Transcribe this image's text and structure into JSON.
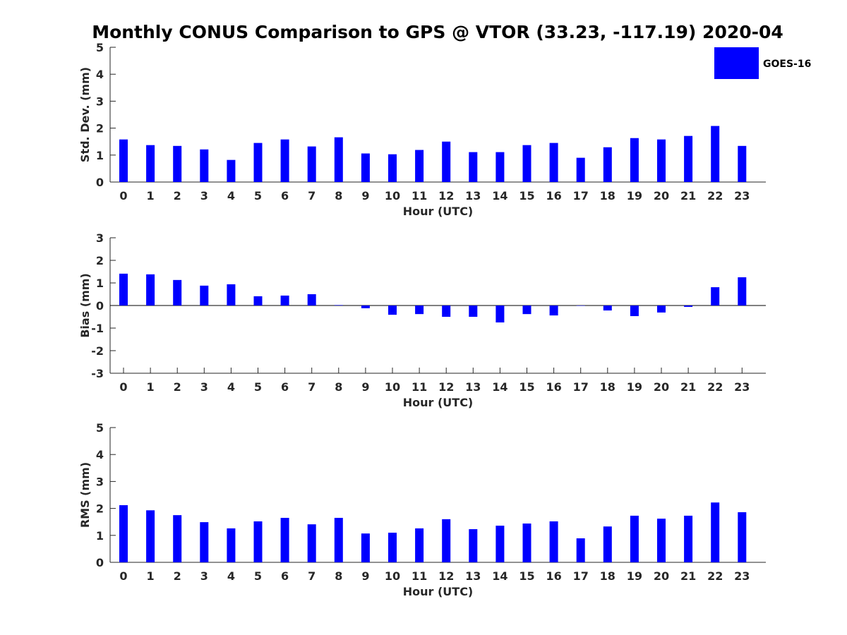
{
  "title": "Monthly CONUS Comparison to GPS @ VTOR (33.23, -117.19) 2020-04",
  "legend": {
    "label": "GOES-16",
    "placement": "top-right",
    "color": "#0000ff"
  },
  "chart_data": [
    {
      "type": "bar",
      "name": "std_dev",
      "xlabel": "Hour (UTC)",
      "ylabel": "Std. Dev. (mm)",
      "categories": [
        "0",
        "1",
        "2",
        "3",
        "4",
        "5",
        "6",
        "7",
        "8",
        "9",
        "10",
        "11",
        "12",
        "13",
        "14",
        "15",
        "16",
        "17",
        "18",
        "19",
        "20",
        "21",
        "22",
        "23"
      ],
      "yticks": [
        "0",
        "1",
        "2",
        "3",
        "4",
        "5"
      ],
      "ylim": [
        0,
        5
      ],
      "series": [
        {
          "name": "GOES-16",
          "color": "#0000ff",
          "values": [
            1.58,
            1.37,
            1.34,
            1.21,
            0.82,
            1.45,
            1.58,
            1.32,
            1.66,
            1.06,
            1.03,
            1.19,
            1.5,
            1.11,
            1.11,
            1.37,
            1.45,
            0.9,
            1.29,
            1.63,
            1.58,
            1.71,
            2.08,
            1.34
          ]
        }
      ],
      "zero_line": false,
      "grid": false
    },
    {
      "type": "bar",
      "name": "bias",
      "xlabel": "Hour (UTC)",
      "ylabel": "Bias (mm)",
      "categories": [
        "0",
        "1",
        "2",
        "3",
        "4",
        "5",
        "6",
        "7",
        "8",
        "9",
        "10",
        "11",
        "12",
        "13",
        "14",
        "15",
        "16",
        "17",
        "18",
        "19",
        "20",
        "21",
        "22",
        "23"
      ],
      "yticks": [
        "-3",
        "-2",
        "-1",
        "0",
        "1",
        "2",
        "3"
      ],
      "ylim": [
        -3,
        3
      ],
      "series": [
        {
          "name": "GOES-16",
          "color": "#0000ff",
          "values": [
            1.41,
            1.38,
            1.13,
            0.88,
            0.94,
            0.41,
            0.44,
            0.5,
            0.02,
            -0.12,
            -0.41,
            -0.38,
            -0.5,
            -0.5,
            -0.75,
            -0.38,
            -0.44,
            -0.01,
            -0.22,
            -0.47,
            -0.31,
            -0.06,
            0.81,
            1.25
          ]
        }
      ],
      "zero_line": true,
      "grid": false
    },
    {
      "type": "bar",
      "name": "rms",
      "xlabel": "Hour (UTC)",
      "ylabel": "RMS (mm)",
      "categories": [
        "0",
        "1",
        "2",
        "3",
        "4",
        "5",
        "6",
        "7",
        "8",
        "9",
        "10",
        "11",
        "12",
        "13",
        "14",
        "15",
        "16",
        "17",
        "18",
        "19",
        "20",
        "21",
        "22",
        "23"
      ],
      "yticks": [
        "0",
        "1",
        "2",
        "3",
        "4",
        "5"
      ],
      "ylim": [
        0,
        5
      ],
      "series": [
        {
          "name": "GOES-16",
          "color": "#0000ff",
          "values": [
            2.12,
            1.93,
            1.75,
            1.49,
            1.26,
            1.52,
            1.65,
            1.41,
            1.65,
            1.07,
            1.1,
            1.26,
            1.6,
            1.23,
            1.36,
            1.44,
            1.52,
            0.89,
            1.33,
            1.73,
            1.62,
            1.73,
            2.22,
            1.86
          ]
        }
      ],
      "zero_line": false,
      "grid": false
    }
  ]
}
